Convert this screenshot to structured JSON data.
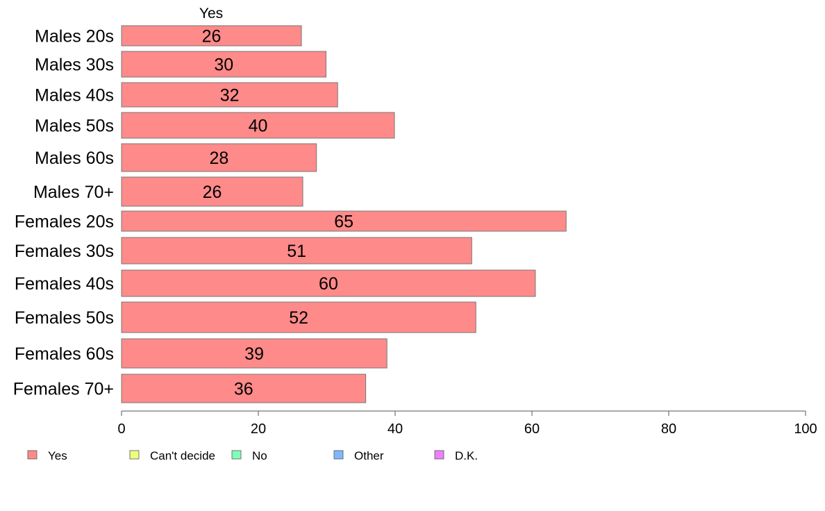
{
  "chart_data": {
    "type": "bar",
    "orientation": "horizontal",
    "series_header": "Yes",
    "categories": [
      "Males 20s",
      "Males 30s",
      "Males 40s",
      "Males 50s",
      "Males 60s",
      "Males 70+",
      "Females 20s",
      "Females 30s",
      "Females 40s",
      "Females 50s",
      "Females 60s",
      "Females 70+"
    ],
    "series": [
      {
        "name": "Yes",
        "color": "#ff8a8a",
        "values": [
          26.3,
          29.9,
          31.6,
          39.9,
          28.5,
          26.5,
          65.0,
          51.2,
          60.5,
          51.8,
          38.8,
          35.7
        ]
      }
    ],
    "data_labels": [
      "26",
      "30",
      "32",
      "40",
      "28",
      "26",
      "65",
      "51",
      "60",
      "52",
      "39",
      "36"
    ],
    "xlim": [
      0,
      100
    ],
    "xticks": [
      0,
      20,
      40,
      60,
      80,
      100
    ],
    "xlabel": "",
    "ylabel": "",
    "grid": false,
    "legend": {
      "position": "bottom-left",
      "entries": [
        {
          "label": "Yes",
          "color": "#ff8a8a"
        },
        {
          "label": "Can't decide",
          "color": "#eeff80"
        },
        {
          "label": "No",
          "color": "#80ffb8"
        },
        {
          "label": "Other",
          "color": "#80b8ff"
        },
        {
          "label": "D.K.",
          "color": "#ee80ff"
        }
      ]
    }
  }
}
